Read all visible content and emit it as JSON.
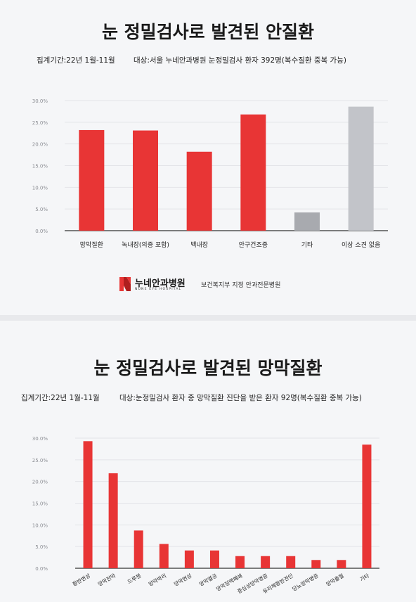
{
  "chart1": {
    "title": "눈 정밀검사로 발견된 안질환",
    "period": "집계기간:22년 1월-11월",
    "target": "대상:서울 누네안과병원 눈정밀검사 환자 392명(복수질환 중복 가능)",
    "colors": {
      "red": "#e83535",
      "gray": "#a8aaaf",
      "lightgray": "#c2c4c9"
    }
  },
  "chart2": {
    "title": "눈 정밀검사로 발견된 망막질환",
    "period": "집계기간:22년 1월-11월",
    "target": "대상:눈정밀검사 환자 중 망막질환 진단을 받은 환자 92명(복수질환 중복 가능)"
  },
  "logo": {
    "name": "누네안과병원",
    "english": "NUNE EYE HOSPITAL",
    "tagline": "보건복지부 지정 안과전문병원"
  },
  "chart_data": [
    {
      "type": "bar",
      "title": "눈 정밀검사로 발견된 안질환",
      "categories": [
        "망막질환",
        "녹내장(의증 포함)",
        "백내장",
        "안구건조증",
        "기타",
        "이상 소견 없음"
      ],
      "values": [
        23.2,
        23.1,
        18.2,
        26.8,
        4.2,
        28.6
      ],
      "bar_colors": [
        "#e83535",
        "#e83535",
        "#e83535",
        "#e83535",
        "#a8aaaf",
        "#c2c4c9"
      ],
      "yticks": [
        "0.0%",
        "5.0%",
        "10.0%",
        "15.0%",
        "20.0%",
        "25.0%",
        "30.0%"
      ],
      "ylim": [
        0,
        30
      ],
      "grid": true
    },
    {
      "type": "bar",
      "title": "눈 정밀검사로 발견된 망막질환",
      "categories": [
        "황반변성",
        "망막전막",
        "드루젠",
        "망막박리",
        "망막변성",
        "망막열공",
        "망막정맥폐쇄",
        "중심성망막병증",
        "유리체황반견인",
        "당뇨망막병증",
        "망막출혈",
        "기타"
      ],
      "values": [
        29.3,
        21.9,
        8.7,
        5.6,
        4.1,
        4.1,
        2.8,
        2.8,
        2.8,
        1.9,
        1.9,
        28.5
      ],
      "bar_colors": [
        "#e83535"
      ],
      "yticks": [
        "0.0%",
        "5.0%",
        "10.0%",
        "15.0%",
        "20.0%",
        "25.0%",
        "30.0%"
      ],
      "ylim": [
        0,
        30
      ],
      "grid": true
    }
  ]
}
